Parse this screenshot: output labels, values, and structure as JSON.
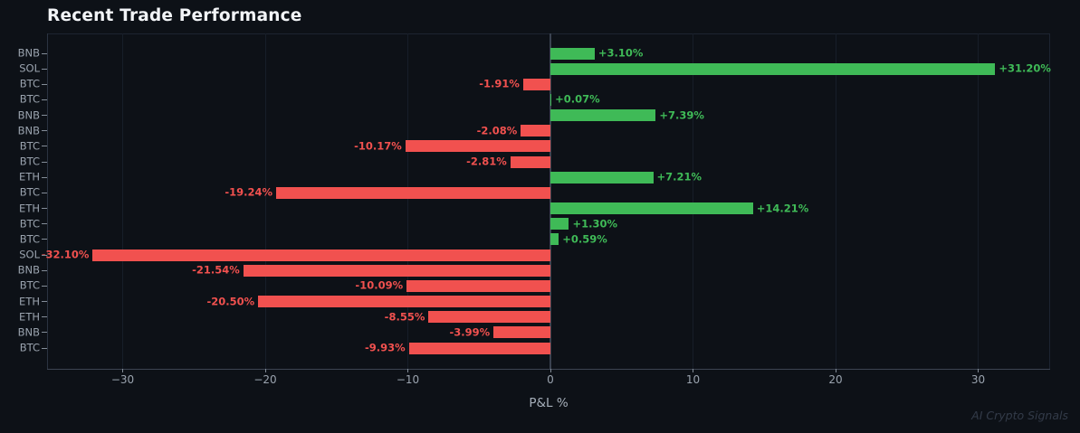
{
  "chart_data": {
    "type": "bar",
    "orientation": "horizontal",
    "title": "Recent Trade Performance",
    "xlabel": "P&L %",
    "ylabel": "",
    "legend": "none",
    "grid": "vertical",
    "watermark": "AI Crypto Signals",
    "categories": [
      "BNB",
      "SOL",
      "BTC",
      "BTC",
      "BNB",
      "BNB",
      "BTC",
      "BTC",
      "ETH",
      "BTC",
      "ETH",
      "BTC",
      "BTC",
      "SOL",
      "BNB",
      "BTC",
      "ETH",
      "ETH",
      "BNB",
      "BTC"
    ],
    "values": [
      3.1,
      31.2,
      -1.91,
      0.07,
      7.39,
      -2.08,
      -10.17,
      -2.81,
      7.21,
      -19.24,
      14.21,
      1.3,
      0.59,
      -32.1,
      -21.54,
      -10.09,
      -20.5,
      -8.55,
      -3.99,
      -9.93
    ],
    "bar_labels": [
      "+3.10%",
      "+31.20%",
      "-1.91%",
      "+0.07%",
      "+7.39%",
      "-2.08%",
      "-10.17%",
      "-2.81%",
      "+7.21%",
      "-19.24%",
      "+14.21%",
      "+1.30%",
      "+0.59%",
      "-32.10%",
      "-21.54%",
      "-10.09%",
      "-20.50%",
      "-8.55%",
      "-3.99%",
      "-9.93%"
    ],
    "xlim": [
      -35.3,
      35.0
    ],
    "xticks": [
      -30,
      -20,
      -10,
      0,
      10,
      20,
      30
    ],
    "xtick_labels": [
      "−30",
      "−20",
      "−10",
      "0",
      "10",
      "20",
      "30"
    ],
    "colors": {
      "positive": "#3fba57",
      "negative": "#f1514f",
      "background": "#0d1117",
      "tick_text": "#9aa3ae",
      "title_text": "#f2f4f7",
      "zero_line": "#3a4250",
      "gridline": "#171e29",
      "watermark": "#333b49"
    }
  }
}
